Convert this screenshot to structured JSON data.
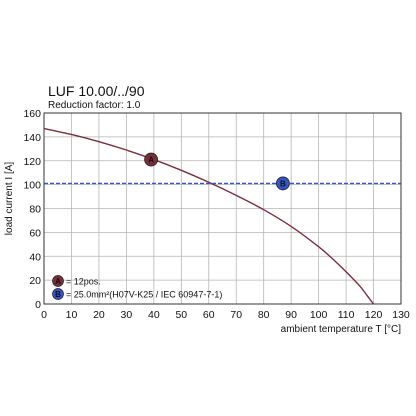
{
  "chart_data": {
    "type": "line",
    "title": "LUF 10.00/../90",
    "subtitle": "Reduction factor: 1.0",
    "xlabel": "ambient temperature T [°C]",
    "ylabel": "load current I [A]",
    "xlim": [
      0,
      130
    ],
    "ylim": [
      0,
      160
    ],
    "x_ticks": [
      0,
      10,
      20,
      30,
      40,
      50,
      60,
      70,
      80,
      90,
      100,
      110,
      120,
      130
    ],
    "y_ticks": [
      0,
      20,
      40,
      60,
      80,
      100,
      120,
      140,
      160
    ],
    "grid": true,
    "series": [
      {
        "marker_label": "A",
        "color": "#7a2e3c",
        "style": "solid",
        "x": [
          0,
          10,
          20,
          30,
          40,
          50,
          60,
          70,
          80,
          90,
          100,
          105,
          110,
          115,
          118,
          120
        ],
        "y": [
          147,
          142,
          136,
          129,
          121,
          112,
          102,
          91,
          79,
          65,
          48,
          38,
          27,
          15,
          6,
          0
        ],
        "marker_x": 39,
        "marker_y": 121
      },
      {
        "marker_label": "B",
        "color": "#3355cc",
        "style": "dashed",
        "x": [
          0,
          130
        ],
        "y": [
          101,
          101
        ],
        "marker_x": 87,
        "marker_y": 101
      }
    ],
    "legend": {
      "placement": "bottom-left",
      "entries": [
        {
          "marker_label": "A",
          "color": "#7a2e3c",
          "text": "= 12pos."
        },
        {
          "marker_label": "B",
          "color": "#3355cc",
          "text": "= 25.0mm²(H07V-K25 / IEC 60947-7-1)"
        }
      ]
    }
  }
}
